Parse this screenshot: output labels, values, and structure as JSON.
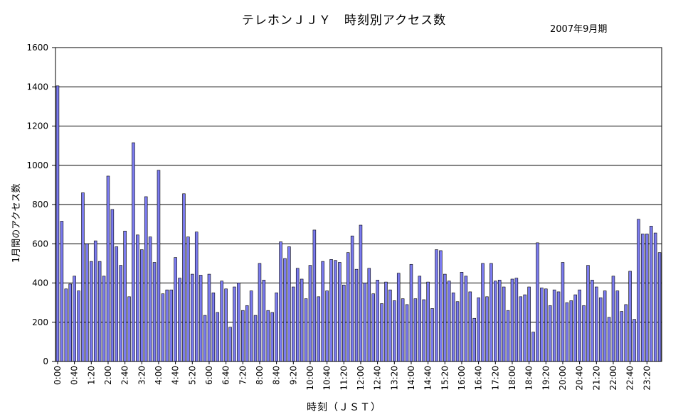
{
  "chart_data": {
    "type": "bar",
    "title": "テレホンＪＪＹ　時刻別アクセス数",
    "subtitle": "2007年9月期",
    "xlabel": "時刻（ＪＳＴ）",
    "ylabel": "1月間のアクセス数",
    "ylim": [
      0,
      1600
    ],
    "yticks": [
      0,
      200,
      400,
      600,
      800,
      1000,
      1200,
      1400,
      1600
    ],
    "grid": true,
    "bar_color": "#7b7bef",
    "x_tick_labels": [
      "0:00",
      "0:40",
      "1:20",
      "2:00",
      "2:40",
      "3:20",
      "4:00",
      "4:40",
      "5:20",
      "6:00",
      "6:40",
      "7:20",
      "8:00",
      "8:40",
      "9:20",
      "10:00",
      "10:40",
      "11:20",
      "12:00",
      "12:40",
      "13:20",
      "14:00",
      "14:40",
      "15:20",
      "16:00",
      "16:40",
      "17:20",
      "18:00",
      "18:40",
      "19:20",
      "20:00",
      "20:40",
      "21:20",
      "22:00",
      "22:40",
      "23:20"
    ],
    "categories": [
      "0:00",
      "0:10",
      "0:20",
      "0:30",
      "0:40",
      "0:50",
      "1:00",
      "1:10",
      "1:20",
      "1:30",
      "1:40",
      "1:50",
      "2:00",
      "2:10",
      "2:20",
      "2:30",
      "2:40",
      "2:50",
      "3:00",
      "3:10",
      "3:20",
      "3:30",
      "3:40",
      "3:50",
      "4:00",
      "4:10",
      "4:20",
      "4:30",
      "4:40",
      "4:50",
      "5:00",
      "5:10",
      "5:20",
      "5:30",
      "5:40",
      "5:50",
      "6:00",
      "6:10",
      "6:20",
      "6:30",
      "6:40",
      "6:50",
      "7:00",
      "7:10",
      "7:20",
      "7:30",
      "7:40",
      "7:50",
      "8:00",
      "8:10",
      "8:20",
      "8:30",
      "8:40",
      "8:50",
      "9:00",
      "9:10",
      "9:20",
      "9:30",
      "9:40",
      "9:50",
      "10:00",
      "10:10",
      "10:20",
      "10:30",
      "10:40",
      "10:50",
      "11:00",
      "11:10",
      "11:20",
      "11:30",
      "11:40",
      "11:50",
      "12:00",
      "12:10",
      "12:20",
      "12:30",
      "12:40",
      "12:50",
      "13:00",
      "13:10",
      "13:20",
      "13:30",
      "13:40",
      "13:50",
      "14:00",
      "14:10",
      "14:20",
      "14:30",
      "14:40",
      "14:50",
      "15:00",
      "15:10",
      "15:20",
      "15:30",
      "15:40",
      "15:50",
      "16:00",
      "16:10",
      "16:20",
      "16:30",
      "16:40",
      "16:50",
      "17:00",
      "17:10",
      "17:20",
      "17:30",
      "17:40",
      "17:50",
      "18:00",
      "18:10",
      "18:20",
      "18:30",
      "18:40",
      "18:50",
      "19:00",
      "19:10",
      "19:20",
      "19:30",
      "19:40",
      "19:50",
      "20:00",
      "20:10",
      "20:20",
      "20:30",
      "20:40",
      "20:50",
      "21:00",
      "21:10",
      "21:20",
      "21:30",
      "21:40",
      "21:50",
      "22:00",
      "22:10",
      "22:20",
      "22:30",
      "22:40",
      "22:50",
      "23:00",
      "23:10",
      "23:20",
      "23:30",
      "23:40",
      "23:50"
    ],
    "values": [
      1405,
      715,
      370,
      395,
      435,
      360,
      860,
      600,
      510,
      615,
      510,
      435,
      945,
      775,
      585,
      490,
      665,
      330,
      1115,
      645,
      570,
      840,
      635,
      505,
      975,
      345,
      365,
      365,
      530,
      425,
      855,
      635,
      445,
      660,
      440,
      235,
      445,
      350,
      250,
      410,
      370,
      175,
      380,
      400,
      260,
      285,
      360,
      235,
      500,
      415,
      260,
      250,
      350,
      610,
      525,
      585,
      380,
      475,
      420,
      320,
      490,
      670,
      330,
      510,
      360,
      520,
      515,
      505,
      390,
      555,
      640,
      470,
      695,
      400,
      475,
      345,
      415,
      295,
      405,
      365,
      310,
      450,
      320,
      290,
      495,
      320,
      435,
      315,
      405,
      270,
      570,
      565,
      445,
      410,
      350,
      305,
      455,
      435,
      355,
      220,
      325,
      500,
      330,
      500,
      410,
      415,
      380,
      260,
      420,
      425,
      330,
      340,
      380,
      150,
      605,
      375,
      370,
      285,
      365,
      355,
      505,
      300,
      310,
      340,
      365,
      285,
      490,
      415,
      380,
      325,
      360,
      225,
      435,
      360,
      255,
      290,
      460,
      215,
      725,
      650,
      650,
      690,
      655,
      555
    ]
  }
}
